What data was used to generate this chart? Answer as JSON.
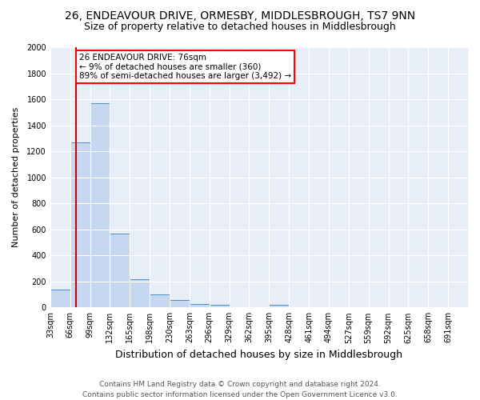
{
  "title1": "26, ENDEAVOUR DRIVE, ORMESBY, MIDDLESBROUGH, TS7 9NN",
  "title2": "Size of property relative to detached houses in Middlesbrough",
  "xlabel": "Distribution of detached houses by size in Middlesbrough",
  "ylabel": "Number of detached properties",
  "bin_labels": [
    "33sqm",
    "66sqm",
    "99sqm",
    "132sqm",
    "165sqm",
    "198sqm",
    "230sqm",
    "263sqm",
    "296sqm",
    "329sqm",
    "362sqm",
    "395sqm",
    "428sqm",
    "461sqm",
    "494sqm",
    "527sqm",
    "559sqm",
    "592sqm",
    "625sqm",
    "658sqm",
    "691sqm"
  ],
  "bar_values": [
    140,
    1270,
    1570,
    570,
    220,
    100,
    55,
    25,
    20,
    0,
    0,
    20,
    0,
    0,
    0,
    0,
    0,
    0,
    0,
    0,
    0
  ],
  "bar_color": "#c5d8f0",
  "bar_edge_color": "#4a90c4",
  "red_line_bin": 1,
  "annotation_text": "26 ENDEAVOUR DRIVE: 76sqm\n← 9% of detached houses are smaller (360)\n89% of semi-detached houses are larger (3,492) →",
  "annotation_box_color": "white",
  "annotation_box_edge_color": "red",
  "red_line_color": "#cc0000",
  "ylim": [
    0,
    2000
  ],
  "yticks": [
    0,
    200,
    400,
    600,
    800,
    1000,
    1200,
    1400,
    1600,
    1800,
    2000
  ],
  "bg_color": "#e8eef8",
  "footer": "Contains HM Land Registry data © Crown copyright and database right 2024.\nContains public sector information licensed under the Open Government Licence v3.0.",
  "title1_fontsize": 10,
  "title2_fontsize": 9,
  "xlabel_fontsize": 9,
  "ylabel_fontsize": 8,
  "tick_fontsize": 7,
  "footer_fontsize": 6.5,
  "annot_fontsize": 7.5
}
